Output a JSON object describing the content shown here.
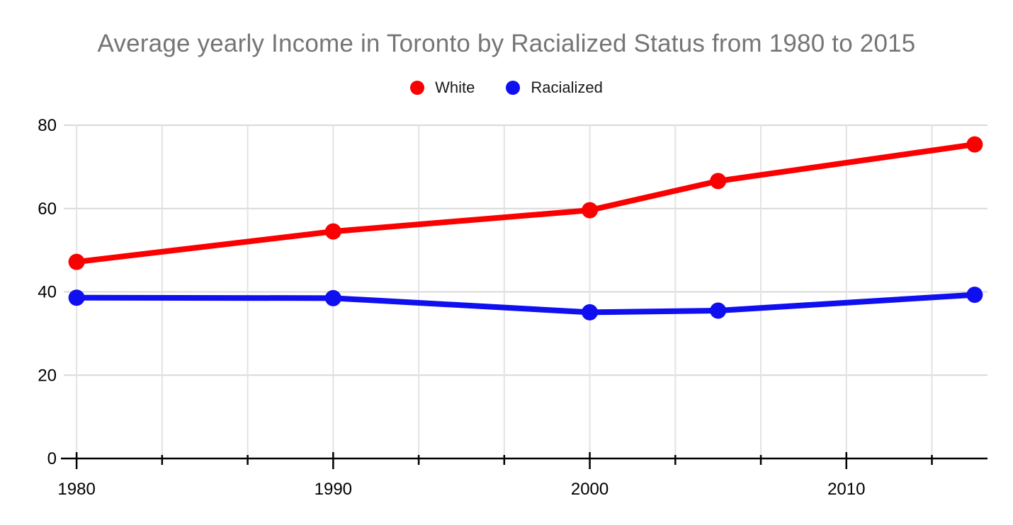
{
  "title": "Average yearly Income in Toronto by Racialized Status from 1980 to 2015",
  "chart_data": {
    "type": "line",
    "title": "Average yearly Income in Toronto by Racialized Status from 1980 to 2015",
    "xlabel": "",
    "ylabel": "",
    "x": [
      1980,
      1990,
      2000,
      2005,
      2015
    ],
    "series": [
      {
        "name": "White",
        "color": "#fb0000",
        "values": [
          47.2,
          54.5,
          59.6,
          66.6,
          75.4
        ]
      },
      {
        "name": "Racialized",
        "color": "#0f0ff0",
        "values": [
          38.6,
          38.5,
          35.1,
          35.5,
          39.3
        ]
      }
    ],
    "xlim": [
      1979.5,
      2015.5
    ],
    "ylim": [
      0,
      80
    ],
    "yticks": [
      0,
      20,
      40,
      60,
      80
    ],
    "xticks": [
      1980,
      1990,
      2000,
      2010
    ],
    "x_grid_step_years": 3.33333,
    "grid": true,
    "legend_position": "top",
    "style": {
      "title_color": "#757575",
      "label_color": "#000000",
      "axis_color": "#000000",
      "h_grid_color": "#d9d9d9",
      "v_grid_color": "#e3e3e3",
      "background": "#ffffff"
    }
  }
}
